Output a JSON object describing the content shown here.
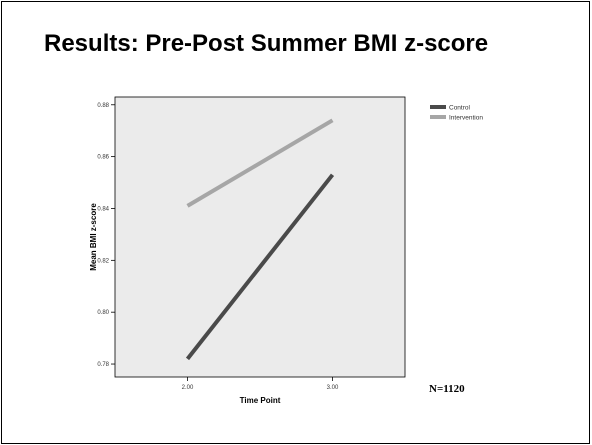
{
  "slide": {
    "title": "Results: Pre-Post Summer BMI z-score",
    "note": "N=1120"
  },
  "chart_data": {
    "type": "line",
    "xlabel": "Time Point",
    "ylabel": "Mean BMI z-score",
    "xlim": [
      1.5,
      3.5
    ],
    "ylim": [
      0.775,
      0.883
    ],
    "x_ticks": [
      "2.00",
      "3.00"
    ],
    "y_ticks": [
      "0.78",
      "0.80",
      "0.82",
      "0.84",
      "0.86",
      "0.88"
    ],
    "series": [
      {
        "name": "Control",
        "color": "#4a4a4a",
        "x": [
          2.0,
          3.0
        ],
        "values": [
          0.782,
          0.853
        ]
      },
      {
        "name": "Intervention",
        "color": "#a6a6a6",
        "x": [
          2.0,
          3.0
        ],
        "values": [
          0.841,
          0.874
        ]
      }
    ],
    "legend_position": "top-right",
    "background": "#ebebeb",
    "grid": false
  }
}
